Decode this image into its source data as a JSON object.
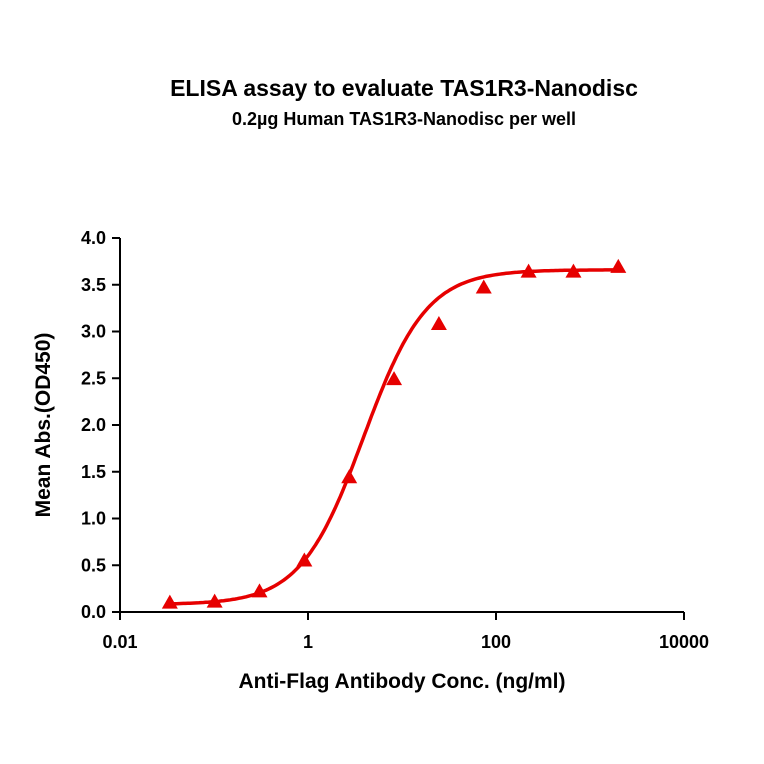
{
  "chart_data": {
    "type": "scatter",
    "title": "ELISA assay to evaluate TAS1R3-Nanodisc",
    "subtitle": "0.2µg Human TAS1R3-Nanodisc per well",
    "xlabel": "Anti-Flag Antibody Conc. (ng/ml)",
    "ylabel": "Mean Abs.(OD450)",
    "x_scale": "log",
    "xlim": [
      0.01,
      10000
    ],
    "ylim": [
      0,
      4.0
    ],
    "x_ticks": [
      0.01,
      1,
      100,
      10000
    ],
    "x_tick_labels": [
      "0.01",
      "1",
      "100",
      "10000"
    ],
    "y_ticks": [
      0,
      0.5,
      1.0,
      1.5,
      2.0,
      2.5,
      3.0,
      3.5,
      4.0
    ],
    "y_tick_labels": [
      "0.0",
      "0.5",
      "1.0",
      "1.5",
      "2.0",
      "2.5",
      "3.0",
      "3.5",
      "4.0"
    ],
    "grid": false,
    "legend": "none",
    "color": "#e60000",
    "marker": "triangle",
    "fit": "4-parameter logistic curve",
    "x": [
      0.0339,
      0.1016,
      0.3048,
      0.9145,
      2.743,
      8.23,
      24.69,
      74.07,
      222.2,
      666.7,
      2000
    ],
    "y": [
      0.09,
      0.1,
      0.21,
      0.54,
      1.43,
      2.48,
      3.07,
      3.46,
      3.63,
      3.63,
      3.68
    ]
  }
}
